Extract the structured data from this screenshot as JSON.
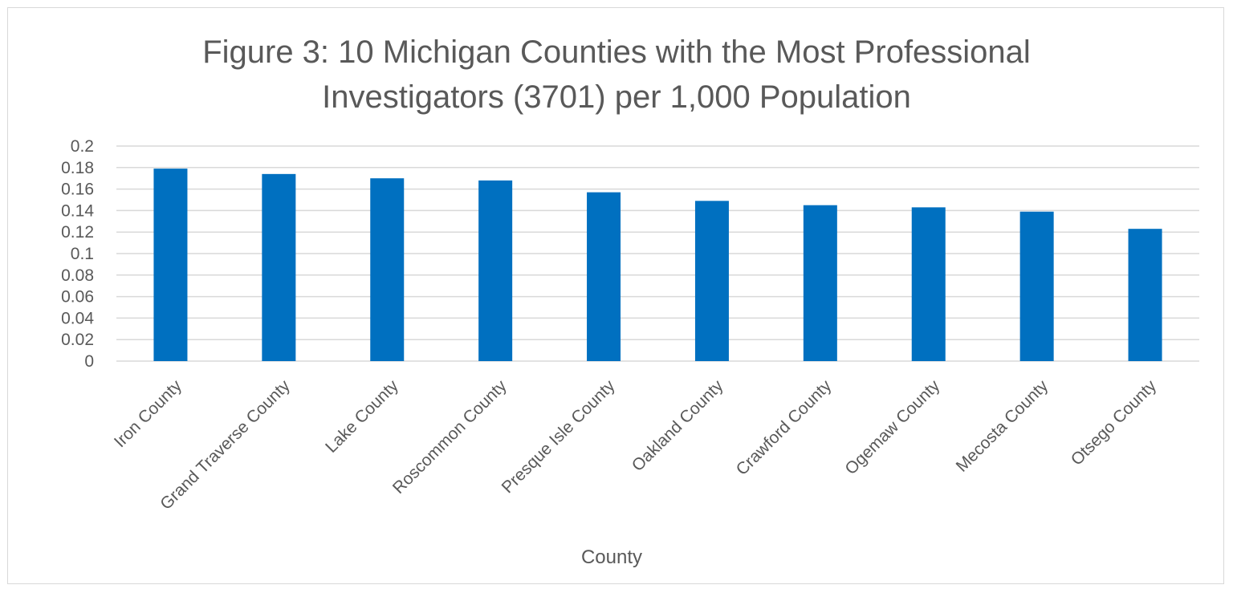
{
  "chart_data": {
    "type": "bar",
    "title_lines": [
      "Figure 3: 10 Michigan Counties with the Most Professional",
      "Investigators (3701) per 1,000 Population"
    ],
    "xlabel": "County",
    "ylabel": "",
    "categories": [
      "Iron County",
      "Grand Traverse County",
      "Lake County",
      "Roscommon County",
      "Presque Isle County",
      "Oakland County",
      "Crawford County",
      "Ogemaw County",
      "Mecosta County",
      "Otsego County"
    ],
    "values": [
      0.179,
      0.174,
      0.17,
      0.168,
      0.157,
      0.149,
      0.145,
      0.143,
      0.139,
      0.123
    ],
    "ylim": [
      0,
      0.2
    ],
    "yticks": [
      "0",
      "0.02",
      "0.04",
      "0.06",
      "0.08",
      "0.1",
      "0.12",
      "0.14",
      "0.16",
      "0.18",
      "0.2"
    ],
    "grid": true,
    "legend": "none",
    "bar_color": "#0070C0"
  }
}
